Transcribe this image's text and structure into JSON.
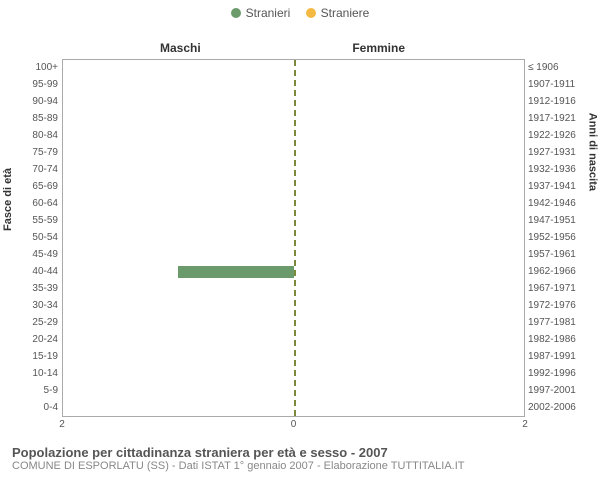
{
  "legend": {
    "male": {
      "label": "Stranieri",
      "color": "#6b9a6b"
    },
    "female": {
      "label": "Straniere",
      "color": "#f4b942"
    }
  },
  "headers": {
    "left": "Maschi",
    "right": "Femmine"
  },
  "y_axis_left_label": "Fasce di età",
  "y_axis_right_label": "Anni di nascita",
  "x_axis": {
    "max": 2,
    "ticks": [
      "2",
      "0",
      "2"
    ]
  },
  "colors": {
    "background": "#ffffff",
    "axis": "#aaaaaa",
    "divider": "#7a8a3a",
    "bar_male": "#6b9a6b",
    "bar_female": "#f4b942"
  },
  "rows": [
    {
      "age": "100+",
      "birth": "≤ 1906",
      "m": 0,
      "f": 0
    },
    {
      "age": "95-99",
      "birth": "1907-1911",
      "m": 0,
      "f": 0
    },
    {
      "age": "90-94",
      "birth": "1912-1916",
      "m": 0,
      "f": 0
    },
    {
      "age": "85-89",
      "birth": "1917-1921",
      "m": 0,
      "f": 0
    },
    {
      "age": "80-84",
      "birth": "1922-1926",
      "m": 0,
      "f": 0
    },
    {
      "age": "75-79",
      "birth": "1927-1931",
      "m": 0,
      "f": 0
    },
    {
      "age": "70-74",
      "birth": "1932-1936",
      "m": 0,
      "f": 0
    },
    {
      "age": "65-69",
      "birth": "1937-1941",
      "m": 0,
      "f": 0
    },
    {
      "age": "60-64",
      "birth": "1942-1946",
      "m": 0,
      "f": 0
    },
    {
      "age": "55-59",
      "birth": "1947-1951",
      "m": 0,
      "f": 0
    },
    {
      "age": "50-54",
      "birth": "1952-1956",
      "m": 0,
      "f": 0
    },
    {
      "age": "45-49",
      "birth": "1957-1961",
      "m": 0,
      "f": 0
    },
    {
      "age": "40-44",
      "birth": "1962-1966",
      "m": 1,
      "f": 0
    },
    {
      "age": "35-39",
      "birth": "1967-1971",
      "m": 0,
      "f": 0
    },
    {
      "age": "30-34",
      "birth": "1972-1976",
      "m": 0,
      "f": 0
    },
    {
      "age": "25-29",
      "birth": "1977-1981",
      "m": 0,
      "f": 0
    },
    {
      "age": "20-24",
      "birth": "1982-1986",
      "m": 0,
      "f": 0
    },
    {
      "age": "15-19",
      "birth": "1987-1991",
      "m": 0,
      "f": 0
    },
    {
      "age": "10-14",
      "birth": "1992-1996",
      "m": 0,
      "f": 0
    },
    {
      "age": "5-9",
      "birth": "1997-2001",
      "m": 0,
      "f": 0
    },
    {
      "age": "0-4",
      "birth": "2002-2006",
      "m": 0,
      "f": 0
    }
  ],
  "caption": {
    "title": "Popolazione per cittadinanza straniera per età e sesso - 2007",
    "sub": "COMUNE DI ESPORLATU (SS) - Dati ISTAT 1° gennaio 2007 - Elaborazione TUTTITALIA.IT"
  }
}
